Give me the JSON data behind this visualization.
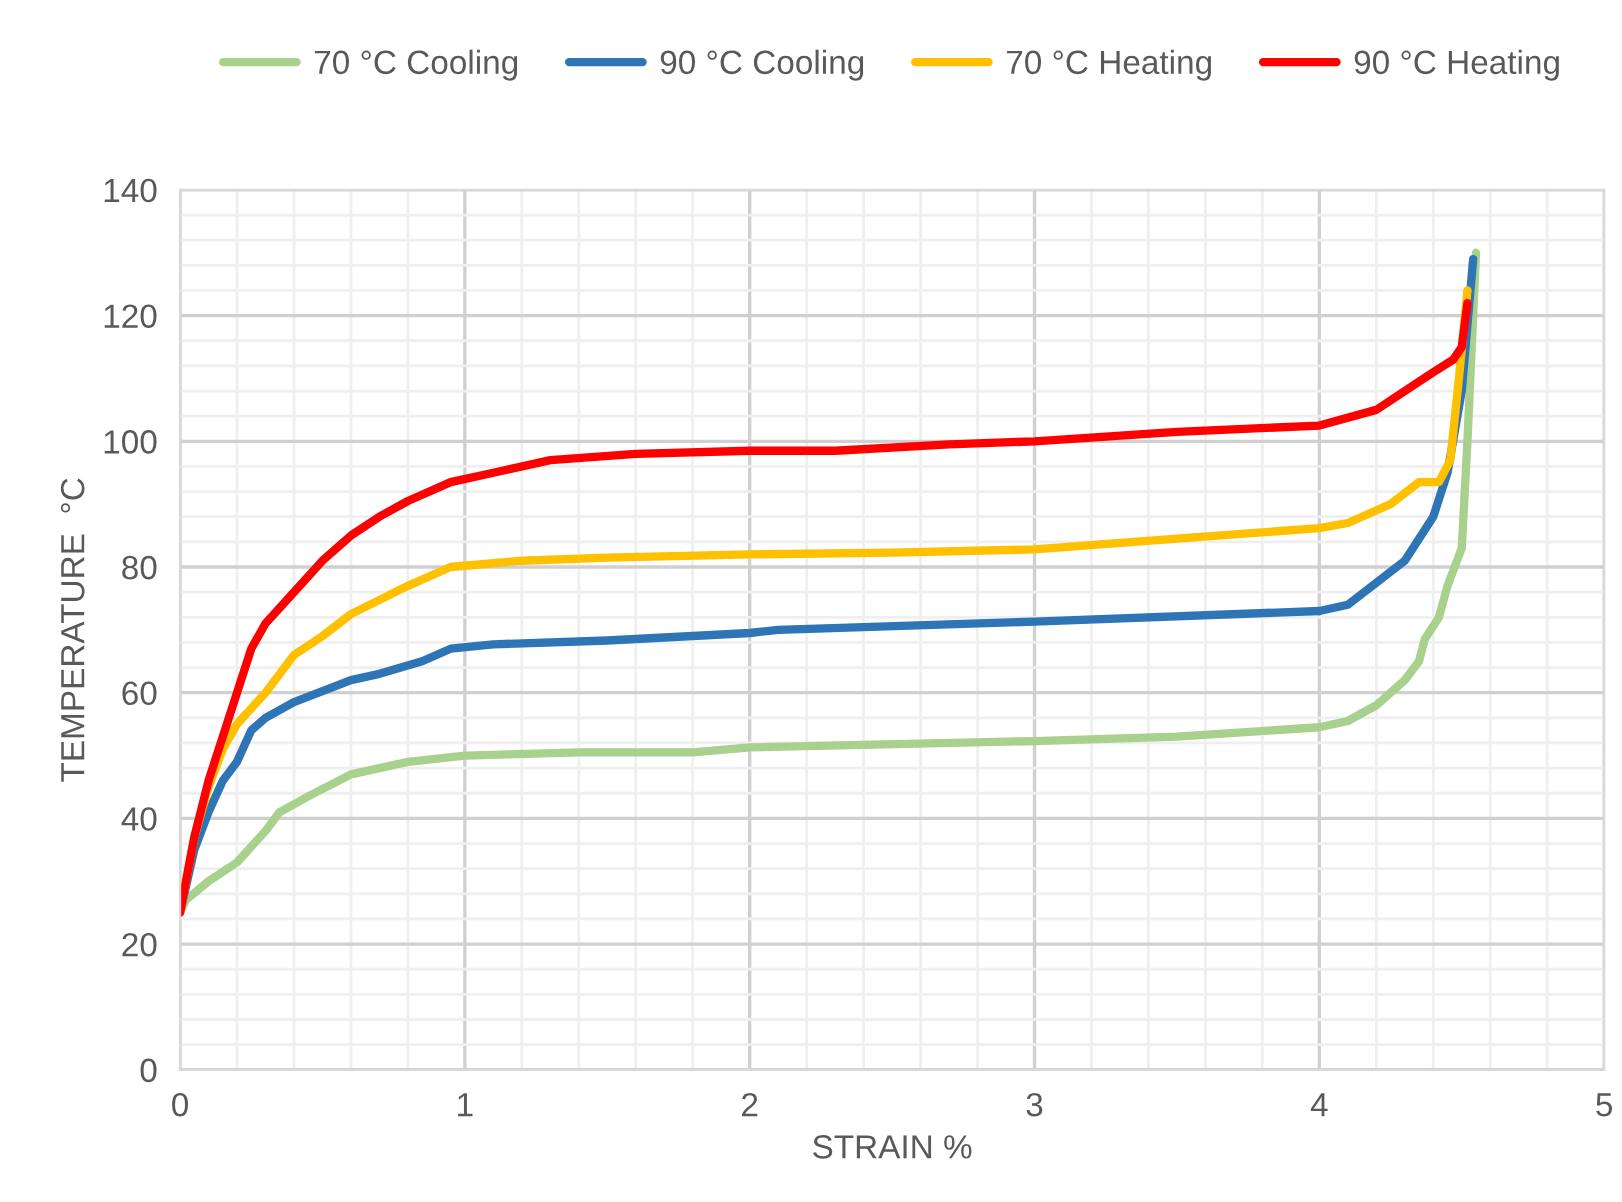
{
  "chart_data": {
    "type": "line",
    "xlabel": "STRAIN %",
    "ylabel": "TEMPERATURE  °C",
    "xlim": [
      0,
      5
    ],
    "xticks": [
      0,
      1,
      2,
      3,
      4,
      5
    ],
    "ylim": [
      0,
      140
    ],
    "yticks": [
      0,
      20,
      40,
      60,
      80,
      100,
      120,
      140
    ],
    "grid": true,
    "legend": "top",
    "marker": "none",
    "line_style": "solid",
    "series": [
      {
        "name": "70 °C Cooling",
        "color": "#a9d18e",
        "x": [
          0,
          0.02,
          0.1,
          0.2,
          0.3,
          0.35,
          0.45,
          0.6,
          0.8,
          1.0,
          1.4,
          1.8,
          2.0,
          3.0,
          3.5,
          4.0,
          4.1,
          4.2,
          4.3,
          4.35,
          4.37,
          4.42,
          4.45,
          4.5,
          4.52,
          4.54,
          4.55
        ],
        "values": [
          25,
          27,
          30,
          33,
          38,
          41,
          43.5,
          47,
          49,
          50,
          50.5,
          50.5,
          51.3,
          52.3,
          53,
          54.5,
          55.5,
          58,
          62,
          65,
          68.5,
          72,
          77,
          83,
          100,
          120,
          130
        ]
      },
      {
        "name": "90 °C Cooling",
        "color": "#2e75b6",
        "x": [
          0,
          0.05,
          0.1,
          0.15,
          0.2,
          0.25,
          0.3,
          0.4,
          0.6,
          0.7,
          0.85,
          0.95,
          1.1,
          1.5,
          2.0,
          2.1,
          3.0,
          4.0,
          4.1,
          4.2,
          4.3,
          4.4,
          4.45,
          4.5,
          4.54
        ],
        "values": [
          25,
          35,
          41,
          46,
          49,
          54,
          56,
          58.5,
          62,
          63,
          65,
          67,
          67.7,
          68.3,
          69.5,
          70,
          71.3,
          73,
          74,
          77.5,
          81,
          88,
          95,
          108,
          129
        ]
      },
      {
        "name": "70 °C Heating",
        "color": "#ffc000",
        "x": [
          0,
          0.05,
          0.1,
          0.15,
          0.2,
          0.3,
          0.4,
          0.5,
          0.6,
          0.8,
          0.95,
          1.2,
          1.5,
          2.0,
          2.5,
          3.0,
          3.5,
          4.0,
          4.1,
          4.25,
          4.35,
          4.42,
          4.46,
          4.49,
          4.52
        ],
        "values": [
          25,
          37,
          45,
          51,
          55,
          60,
          66,
          69,
          72.5,
          77,
          80,
          81,
          81.5,
          82,
          82.3,
          82.8,
          84.5,
          86.2,
          87,
          90,
          93.5,
          93.5,
          97,
          110,
          124
        ]
      },
      {
        "name": "90 °C Heating",
        "color": "#ff0000",
        "x": [
          0,
          0.05,
          0.1,
          0.15,
          0.2,
          0.25,
          0.3,
          0.4,
          0.5,
          0.6,
          0.7,
          0.8,
          0.95,
          1.1,
          1.3,
          1.6,
          2.0,
          2.3,
          2.7,
          3.0,
          3.5,
          4.0,
          4.2,
          4.3,
          4.4,
          4.47,
          4.5,
          4.52
        ],
        "values": [
          25,
          37,
          46,
          53,
          60,
          67,
          71,
          76,
          81,
          85,
          88,
          90.5,
          93.5,
          95,
          97,
          98,
          98.5,
          98.5,
          99.5,
          100,
          101.5,
          102.5,
          105,
          108,
          111,
          113,
          115,
          122
        ]
      }
    ]
  }
}
